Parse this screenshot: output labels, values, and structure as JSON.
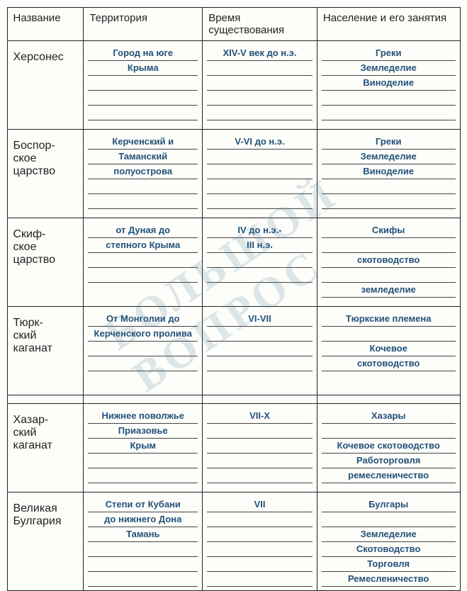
{
  "watermark": "БОЛЬШОЙ ВОПРОС",
  "headers": {
    "name": "Название",
    "territory": "Территория",
    "time": "Время существования",
    "population": "Население и его занятия"
  },
  "rows": [
    {
      "name": "Херсонес",
      "territory": [
        "Город на юге",
        "Крыма",
        "",
        "",
        ""
      ],
      "time": [
        "XIV-V век до н.э.",
        "",
        "",
        "",
        ""
      ],
      "population": [
        "Греки",
        "Земледелие",
        "Виноделие",
        "",
        ""
      ]
    },
    {
      "name": "Боспор-\nское\nцарство",
      "territory": [
        "Керченский и",
        "Таманский",
        "полуострова",
        "",
        ""
      ],
      "time": [
        "V-VI до н.э.",
        "",
        "",
        "",
        ""
      ],
      "population": [
        "Греки",
        "Земледелие",
        "Виноделие",
        "",
        ""
      ]
    },
    {
      "name": "Скиф-\nское\nцарство",
      "territory": [
        "от Дуная до",
        "степного Крыма",
        "",
        ""
      ],
      "time": [
        "IV  до н.э.-",
        "III н.э.",
        "",
        ""
      ],
      "population": [
        "Скифы",
        "",
        "скотоводство",
        "",
        "земледелие"
      ]
    },
    {
      "name": "Тюрк-\nский\nкаганат",
      "territory": [
        "От Монголии до",
        "Керченского пролива",
        "",
        ""
      ],
      "time": [
        "VI-VII",
        "",
        "",
        ""
      ],
      "population": [
        "Тюркские племена",
        "",
        "Кочевое",
        "скотоводство"
      ]
    },
    {
      "name": "Хазар-\nский\nкаганат",
      "territory": [
        "Нижнее поволжье",
        "Приазовье",
        "Крым",
        "",
        ""
      ],
      "time": [
        "VII-X",
        "",
        "",
        "",
        ""
      ],
      "population": [
        "Хазары",
        "",
        "Кочевое скотоводство",
        "Работорговля",
        "ремесленичество"
      ]
    },
    {
      "name": "Великая\nБулгария",
      "territory": [
        "Степи от Кубани",
        "до нижнего Дона",
        "Тамань",
        "",
        "",
        ""
      ],
      "time": [
        "VII",
        "",
        "",
        "",
        "",
        ""
      ],
      "population": [
        "Булгары",
        "",
        "Земледелие",
        "Скотоводство",
        "Торговля",
        "Ремесленичество"
      ]
    }
  ],
  "styles": {
    "fill_text_color": "#23527a",
    "border_color": "#222222",
    "background": "#fcfcfa",
    "watermark_color": "rgba(70,120,155,0.18)"
  }
}
